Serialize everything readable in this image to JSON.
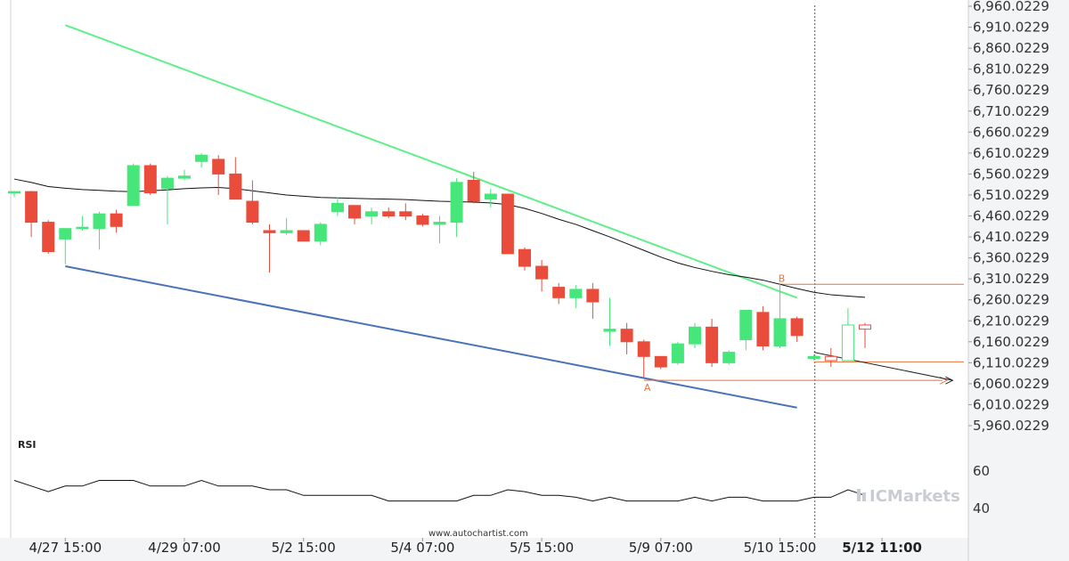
{
  "chart_data": {
    "type": "candlestick",
    "price_axis": {
      "ylim": [
        5935.0229,
        6960.0229
      ],
      "ticks": [
        6960.0229,
        6910.0229,
        6860.0229,
        6810.0229,
        6760.0229,
        6710.0229,
        6660.0229,
        6610.0229,
        6560.0229,
        6510.0229,
        6460.0229,
        6410.0229,
        6360.0229,
        6310.0229,
        6260.0229,
        6210.0229,
        6160.0229,
        6110.0229,
        6060.0229,
        6010.0229,
        5960.0229
      ],
      "tick_labels": [
        "6,960.0229",
        "6,910.0229",
        "6,860.0229",
        "6,810.0229",
        "6,760.0229",
        "6,710.0229",
        "6,660.0229",
        "6,610.0229",
        "6,560.0229",
        "6,510.0229",
        "6,460.0229",
        "6,410.0229",
        "6,360.0229",
        "6,310.0229",
        "6,260.0229",
        "6,210.0229",
        "6,160.0229",
        "6,110.0229",
        "6,060.0229",
        "6,010.0229",
        "5,960.0229"
      ]
    },
    "x_axis": {
      "tick_labels": [
        "4/27 15:00",
        "4/29 07:00",
        "5/2 15:00",
        "5/4 07:00",
        "5/5 15:00",
        "5/9 07:00",
        "5/10 15:00",
        "5/12 11:00"
      ],
      "tick_index": [
        3,
        10,
        17,
        24,
        31,
        38,
        45,
        51
      ],
      "bold_label": "5/12 11:00"
    },
    "candles": [
      {
        "o": 6515,
        "h": 6518,
        "l": 6505,
        "c": 6518
      },
      {
        "o": 6518,
        "h": 6520,
        "l": 6410,
        "c": 6445
      },
      {
        "o": 6445,
        "h": 6450,
        "l": 6370,
        "c": 6375
      },
      {
        "o": 6405,
        "h": 6430,
        "l": 6345,
        "c": 6430
      },
      {
        "o": 6432,
        "h": 6460,
        "l": 6425,
        "c": 6433
      },
      {
        "o": 6430,
        "h": 6470,
        "l": 6380,
        "c": 6465
      },
      {
        "o": 6465,
        "h": 6475,
        "l": 6420,
        "c": 6435
      },
      {
        "o": 6485,
        "h": 6585,
        "l": 6485,
        "c": 6580
      },
      {
        "o": 6580,
        "h": 6585,
        "l": 6510,
        "c": 6515
      },
      {
        "o": 6525,
        "h": 6555,
        "l": 6440,
        "c": 6550
      },
      {
        "o": 6550,
        "h": 6570,
        "l": 6545,
        "c": 6555
      },
      {
        "o": 6590,
        "h": 6610,
        "l": 6575,
        "c": 6605
      },
      {
        "o": 6595,
        "h": 6605,
        "l": 6510,
        "c": 6560
      },
      {
        "o": 6560,
        "h": 6600,
        "l": 6500,
        "c": 6500
      },
      {
        "o": 6495,
        "h": 6545,
        "l": 6440,
        "c": 6445
      },
      {
        "o": 6425,
        "h": 6440,
        "l": 6325,
        "c": 6420
      },
      {
        "o": 6420,
        "h": 6455,
        "l": 6415,
        "c": 6425
      },
      {
        "o": 6425,
        "h": 6425,
        "l": 6400,
        "c": 6400
      },
      {
        "o": 6400,
        "h": 6445,
        "l": 6390,
        "c": 6440
      },
      {
        "o": 6470,
        "h": 6505,
        "l": 6460,
        "c": 6490
      },
      {
        "o": 6485,
        "h": 6485,
        "l": 6440,
        "c": 6455
      },
      {
        "o": 6460,
        "h": 6480,
        "l": 6440,
        "c": 6470
      },
      {
        "o": 6470,
        "h": 6480,
        "l": 6455,
        "c": 6460
      },
      {
        "o": 6470,
        "h": 6490,
        "l": 6450,
        "c": 6460
      },
      {
        "o": 6460,
        "h": 6465,
        "l": 6435,
        "c": 6440
      },
      {
        "o": 6440,
        "h": 6460,
        "l": 6395,
        "c": 6445
      },
      {
        "o": 6445,
        "h": 6550,
        "l": 6410,
        "c": 6540
      },
      {
        "o": 6545,
        "h": 6565,
        "l": 6490,
        "c": 6495
      },
      {
        "o": 6500,
        "h": 6525,
        "l": 6480,
        "c": 6512
      },
      {
        "o": 6512,
        "h": 6512,
        "l": 6370,
        "c": 6370
      },
      {
        "o": 6380,
        "h": 6385,
        "l": 6330,
        "c": 6340
      },
      {
        "o": 6340,
        "h": 6355,
        "l": 6280,
        "c": 6310
      },
      {
        "o": 6290,
        "h": 6300,
        "l": 6250,
        "c": 6265
      },
      {
        "o": 6265,
        "h": 6295,
        "l": 6240,
        "c": 6285
      },
      {
        "o": 6285,
        "h": 6300,
        "l": 6215,
        "c": 6255
      },
      {
        "o": 6185,
        "h": 6265,
        "l": 6150,
        "c": 6190
      },
      {
        "o": 6190,
        "h": 6205,
        "l": 6130,
        "c": 6160
      },
      {
        "o": 6160,
        "h": 6165,
        "l": 6075,
        "c": 6125
      },
      {
        "o": 6125,
        "h": 6125,
        "l": 6095,
        "c": 6100
      },
      {
        "o": 6110,
        "h": 6160,
        "l": 6105,
        "c": 6155
      },
      {
        "o": 6155,
        "h": 6205,
        "l": 6145,
        "c": 6195
      },
      {
        "o": 6195,
        "h": 6215,
        "l": 6100,
        "c": 6110
      },
      {
        "o": 6110,
        "h": 6140,
        "l": 6105,
        "c": 6135
      },
      {
        "o": 6165,
        "h": 6235,
        "l": 6140,
        "c": 6235
      },
      {
        "o": 6230,
        "h": 6245,
        "l": 6140,
        "c": 6150
      },
      {
        "o": 6150,
        "h": 6300,
        "l": 6145,
        "c": 6215
      },
      {
        "o": 6215,
        "h": 6220,
        "l": 6160,
        "c": 6175
      },
      {
        "o": 6120,
        "h": 6130,
        "l": 6115,
        "c": 6125
      },
      {
        "o": 6125,
        "h": 6145,
        "l": 6100,
        "c": 6115
      },
      {
        "o": 6115,
        "h": 6240,
        "l": 6115,
        "c": 6200
      },
      {
        "o": 6200,
        "h": 6205,
        "l": 6145,
        "c": 6190
      }
    ],
    "moving_average": [
      6548,
      6540,
      6530,
      6526,
      6523,
      6521,
      6519,
      6518,
      6520,
      6522,
      6525,
      6527,
      6528,
      6525,
      6520,
      6515,
      6510,
      6507,
      6504,
      6503,
      6502,
      6501,
      6500,
      6499,
      6497,
      6495,
      6494,
      6493,
      6491,
      6487,
      6478,
      6466,
      6452,
      6440,
      6425,
      6410,
      6394,
      6378,
      6362,
      6348,
      6337,
      6328,
      6320,
      6314,
      6307,
      6297,
      6287,
      6278,
      6272,
      6269,
      6266
    ],
    "drawn_lines": {
      "upper_trend": {
        "x": [
          3,
          46
        ],
        "y": [
          6915,
          6265
        ]
      },
      "lower_trend": {
        "x": [
          3,
          46
        ],
        "y": [
          6340,
          6003
        ]
      },
      "projection": {
        "x": [
          47,
          54
        ],
        "y": [
          6135,
          6068
        ]
      },
      "level_b": 6297,
      "level_mid": 6112,
      "level_a": 6068
    },
    "point_labels": {
      "a": "A",
      "b": "B"
    },
    "marker_index": {
      "a": 37,
      "b": 45,
      "vline": 47
    },
    "rsi": {
      "label": "RSI",
      "ylim": [
        32,
        70
      ],
      "ticks": [
        60,
        40
      ],
      "values": [
        55,
        52,
        49,
        52,
        52,
        55,
        55,
        55,
        52,
        52,
        52,
        55,
        52,
        52,
        52,
        50,
        50,
        47,
        47,
        47,
        47,
        47,
        44,
        44,
        44,
        44,
        44,
        47,
        47,
        50,
        49,
        47,
        47,
        46,
        44,
        46,
        44,
        44,
        44,
        44,
        46,
        44,
        46,
        46,
        44,
        44,
        44,
        46,
        46,
        50,
        47
      ]
    },
    "colors": {
      "up": "#46e67a",
      "down": "#ea4c3c",
      "upper_trend": "#5ff08a",
      "lower_trend": "#4a72b8",
      "levels": "#e8743b",
      "ma": "#111111",
      "axis_bg": "#f3f4f6"
    },
    "source": "www.autochartist.com",
    "brand": "ICMarkets"
  }
}
